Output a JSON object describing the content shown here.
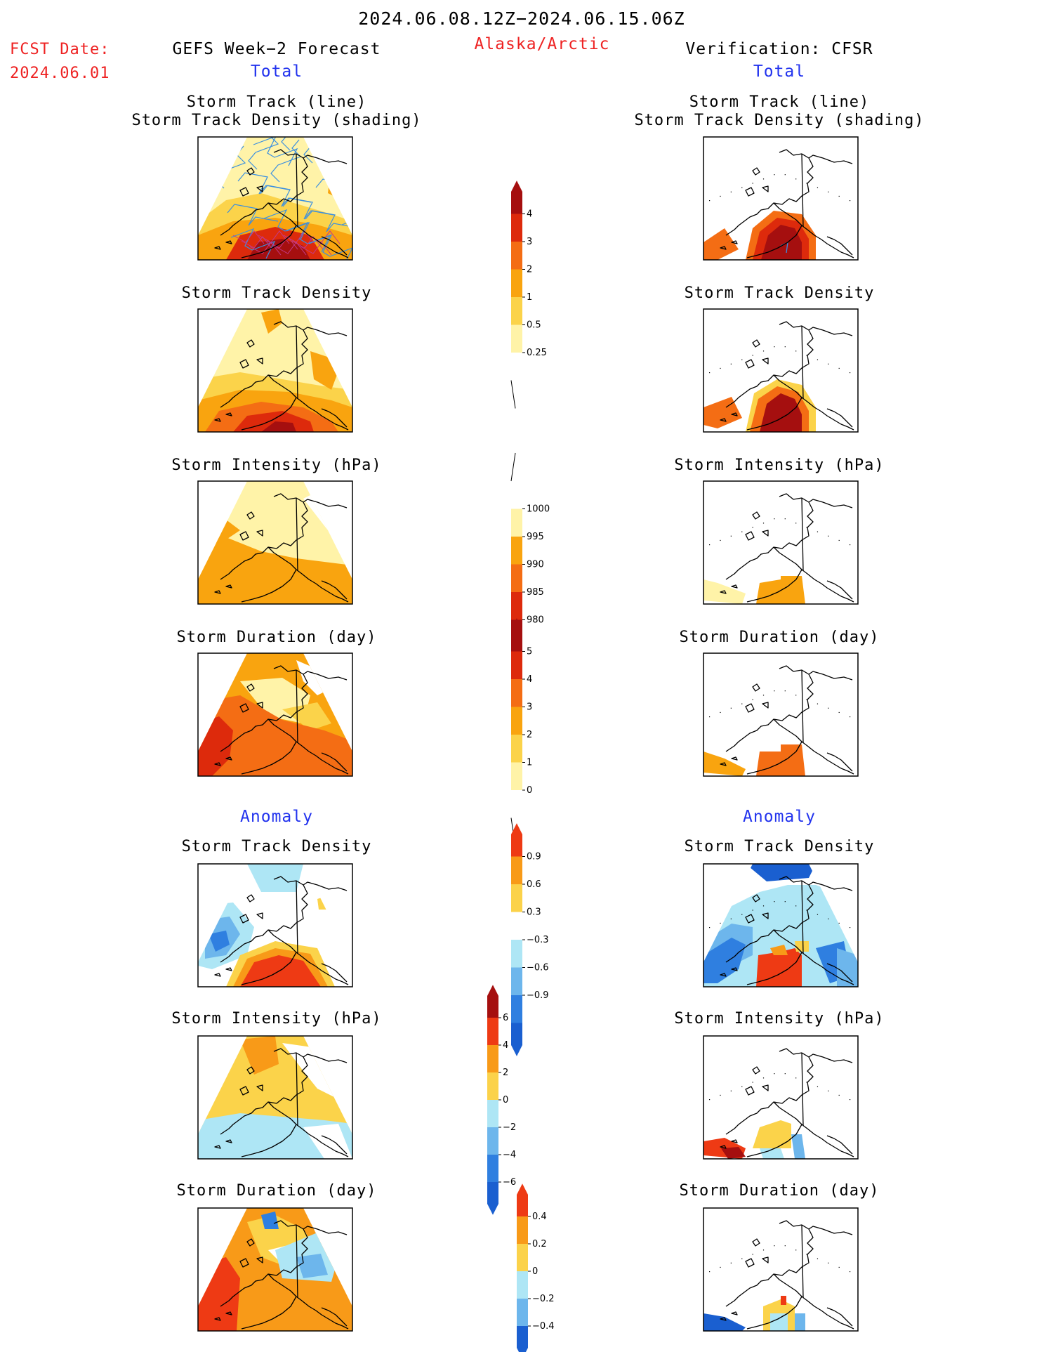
{
  "header": {
    "date_range": "2024.06.08.12Z−2024.06.15.06Z",
    "fcst_label": "FCST Date:",
    "fcst_date": "2024.06.01",
    "left_title": "GEFS Week−2 Forecast",
    "region": "Alaska/Arctic",
    "right_title": "Verification: CFSR",
    "total_left": "Total",
    "total_right": "Total",
    "anomaly_left": "Anomaly",
    "anomaly_right": "Anomaly"
  },
  "panels": [
    {
      "id": "track-line",
      "line1": "Storm Track (line)",
      "line2": "Storm Track Density (shading)"
    },
    {
      "id": "track-density",
      "line1": "Storm Track Density"
    },
    {
      "id": "intensity",
      "line1": "Storm Intensity (hPa)"
    },
    {
      "id": "duration",
      "line1": "Storm Duration (day)"
    },
    {
      "id": "anom-density",
      "line1": "Storm Track Density"
    },
    {
      "id": "anom-intensity",
      "line1": "Storm Intensity (hPa)"
    },
    {
      "id": "anom-duration",
      "line1": "Storm Duration (day)"
    }
  ],
  "colorbars": [
    {
      "id": "density",
      "labels": [
        "4",
        "3",
        "2",
        "1",
        "0.5",
        "0.25"
      ],
      "colors": [
        "#a50f0f",
        "#dd2a0c",
        "#f46d14",
        "#f9a40f",
        "#fbd34a",
        "#fff3a8",
        "#ffffff"
      ],
      "arrows": "top"
    },
    {
      "id": "intensity",
      "labels": [
        "1000",
        "995",
        "990",
        "985",
        "980"
      ],
      "colors": [
        "#ffffff",
        "#fff3a8",
        "#f9a40f",
        "#f46d14",
        "#dd2a0c",
        "#a50f0f"
      ],
      "arrows": "bottom"
    },
    {
      "id": "duration",
      "labels": [
        "5",
        "4",
        "3",
        "2",
        "1",
        "0"
      ],
      "colors": [
        "#a50f0f",
        "#dd2a0c",
        "#f46d14",
        "#f9a40f",
        "#fbd34a",
        "#fff3a8",
        "#ffffff"
      ],
      "arrows": "top"
    },
    {
      "id": "anom-density",
      "labels": [
        "0.9",
        "0.6",
        "0.3",
        "−0.3",
        "−0.6",
        "−0.9"
      ],
      "colors": [
        "#ee3a14",
        "#f89a18",
        "#fbd24a",
        "#ffffff",
        "#aee6f5",
        "#6db6ec",
        "#2f7fe0",
        "#1a5fd0"
      ],
      "arrows": "both"
    },
    {
      "id": "anom-intensity",
      "labels": [
        "6",
        "4",
        "2",
        "0",
        "−2",
        "−4",
        "−6"
      ],
      "colors": [
        "#a50f0f",
        "#ee3a14",
        "#f89a18",
        "#fbd24a",
        "#aee6f5",
        "#6db6ec",
        "#2f7fe0",
        "#1a5fd0"
      ],
      "arrows": "both"
    },
    {
      "id": "anom-duration",
      "labels": [
        "0.4",
        "0.2",
        "0",
        "−0.2",
        "−0.4"
      ],
      "colors": [
        "#ee3a14",
        "#f89a18",
        "#fbd24a",
        "#aee6f5",
        "#6db6ec",
        "#1a5fd0"
      ],
      "arrows": "both"
    }
  ],
  "colors": {
    "red_text": "#ee2222",
    "blue_text": "#2233ee"
  }
}
